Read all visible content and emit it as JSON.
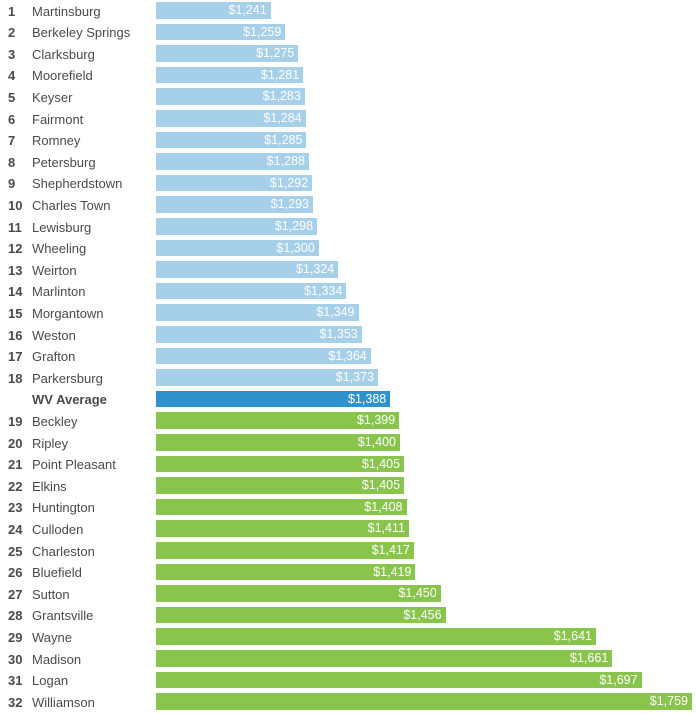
{
  "chart_data": {
    "type": "bar",
    "orientation": "horizontal",
    "title": "",
    "xlabel": "",
    "ylabel": "",
    "grid": false,
    "legend": "none",
    "xlim": [
      1100,
      1759
    ],
    "colors": {
      "below_average": "#a6d0e9",
      "average": "#2e93cc",
      "above_average": "#89c54c"
    },
    "rows": [
      {
        "rank": "1",
        "city": "Martinsburg",
        "value": 1241,
        "label": "$1,241",
        "group": "below_average"
      },
      {
        "rank": "2",
        "city": "Berkeley Springs",
        "value": 1259,
        "label": "$1,259",
        "group": "below_average"
      },
      {
        "rank": "3",
        "city": "Clarksburg",
        "value": 1275,
        "label": "$1,275",
        "group": "below_average"
      },
      {
        "rank": "4",
        "city": "Moorefield",
        "value": 1281,
        "label": "$1,281",
        "group": "below_average"
      },
      {
        "rank": "5",
        "city": "Keyser",
        "value": 1283,
        "label": "$1,283",
        "group": "below_average"
      },
      {
        "rank": "6",
        "city": "Fairmont",
        "value": 1284,
        "label": "$1,284",
        "group": "below_average"
      },
      {
        "rank": "7",
        "city": "Romney",
        "value": 1285,
        "label": "$1,285",
        "group": "below_average"
      },
      {
        "rank": "8",
        "city": "Petersburg",
        "value": 1288,
        "label": "$1,288",
        "group": "below_average"
      },
      {
        "rank": "9",
        "city": "Shepherdstown",
        "value": 1292,
        "label": "$1,292",
        "group": "below_average"
      },
      {
        "rank": "10",
        "city": "Charles Town",
        "value": 1293,
        "label": "$1,293",
        "group": "below_average"
      },
      {
        "rank": "11",
        "city": "Lewisburg",
        "value": 1298,
        "label": "$1,298",
        "group": "below_average"
      },
      {
        "rank": "12",
        "city": "Wheeling",
        "value": 1300,
        "label": "$1,300",
        "group": "below_average"
      },
      {
        "rank": "13",
        "city": "Weirton",
        "value": 1324,
        "label": "$1,324",
        "group": "below_average"
      },
      {
        "rank": "14",
        "city": "Marlinton",
        "value": 1334,
        "label": "$1,334",
        "group": "below_average"
      },
      {
        "rank": "15",
        "city": "Morgantown",
        "value": 1349,
        "label": "$1,349",
        "group": "below_average"
      },
      {
        "rank": "16",
        "city": "Weston",
        "value": 1353,
        "label": "$1,353",
        "group": "below_average"
      },
      {
        "rank": "17",
        "city": "Grafton",
        "value": 1364,
        "label": "$1,364",
        "group": "below_average"
      },
      {
        "rank": "18",
        "city": "Parkersburg",
        "value": 1373,
        "label": "$1,373",
        "group": "below_average"
      },
      {
        "rank": "",
        "city": "WV Average",
        "value": 1388,
        "label": "$1,388",
        "group": "average"
      },
      {
        "rank": "19",
        "city": "Beckley",
        "value": 1399,
        "label": "$1,399",
        "group": "above_average"
      },
      {
        "rank": "20",
        "city": "Ripley",
        "value": 1400,
        "label": "$1,400",
        "group": "above_average"
      },
      {
        "rank": "21",
        "city": "Point Pleasant",
        "value": 1405,
        "label": "$1,405",
        "group": "above_average"
      },
      {
        "rank": "22",
        "city": "Elkins",
        "value": 1405,
        "label": "$1,405",
        "group": "above_average"
      },
      {
        "rank": "23",
        "city": "Huntington",
        "value": 1408,
        "label": "$1,408",
        "group": "above_average"
      },
      {
        "rank": "24",
        "city": "Culloden",
        "value": 1411,
        "label": "$1,411",
        "group": "above_average"
      },
      {
        "rank": "25",
        "city": "Charleston",
        "value": 1417,
        "label": "$1,417",
        "group": "above_average"
      },
      {
        "rank": "26",
        "city": "Bluefield",
        "value": 1419,
        "label": "$1,419",
        "group": "above_average"
      },
      {
        "rank": "27",
        "city": "Sutton",
        "value": 1450,
        "label": "$1,450",
        "group": "above_average"
      },
      {
        "rank": "28",
        "city": "Grantsville",
        "value": 1456,
        "label": "$1,456",
        "group": "above_average"
      },
      {
        "rank": "29",
        "city": "Wayne",
        "value": 1641,
        "label": "$1,641",
        "group": "above_average"
      },
      {
        "rank": "30",
        "city": "Madison",
        "value": 1661,
        "label": "$1,661",
        "group": "above_average"
      },
      {
        "rank": "31",
        "city": "Logan",
        "value": 1697,
        "label": "$1,697",
        "group": "above_average"
      },
      {
        "rank": "32",
        "city": "Williamson",
        "value": 1759,
        "label": "$1,759",
        "group": "above_average"
      }
    ]
  }
}
